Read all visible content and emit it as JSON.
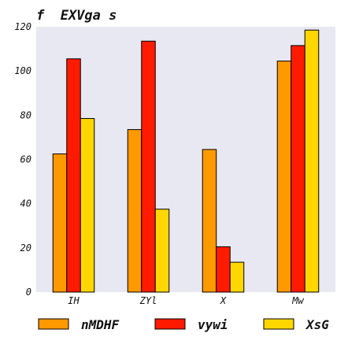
{
  "chart_data": {
    "type": "bar",
    "title": "f  EXVga s",
    "categories": [
      "IH",
      "ZYl",
      "X",
      "Mw"
    ],
    "series": [
      {
        "name": "nMDHF",
        "values": [
          62.5,
          73.5,
          64.5,
          104.5
        ],
        "color": "#ff9900"
      },
      {
        "name": "vywi",
        "values": [
          105.5,
          113.5,
          20.5,
          111.5
        ],
        "color": "#ff1a00"
      },
      {
        "name": "XsG",
        "values": [
          78.5,
          37.5,
          13.5,
          118.5
        ],
        "color": "#ffd700"
      }
    ],
    "xlabel": "",
    "ylabel": "",
    "ylim": [
      0,
      120
    ],
    "yticks": [
      0,
      20,
      40,
      60,
      80,
      100,
      120
    ],
    "grid": false,
    "background": "#e8e8f2",
    "legend_position": "bottom"
  }
}
